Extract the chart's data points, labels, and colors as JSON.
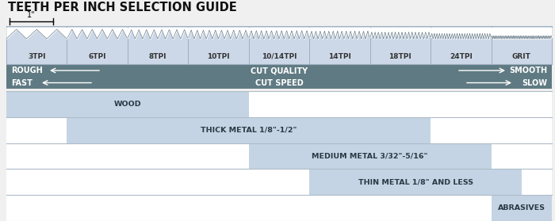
{
  "title": "TEETH PER INCH SELECTION GUIDE",
  "blade_labels": [
    "3TPI",
    "6TPI",
    "8TPI",
    "10TPI",
    "10/14TPI",
    "14TPI",
    "18TPI",
    "24TPI",
    "GRIT"
  ],
  "num_blades": 9,
  "tpi_freqs": [
    3,
    6,
    8,
    10,
    12,
    14,
    18,
    24,
    40
  ],
  "cut_quality_left": "ROUGH",
  "cut_quality_center": "CUT QUALITY",
  "cut_quality_right": "SMOOTH",
  "cut_speed_left": "FAST",
  "cut_speed_center": "CUT SPEED",
  "cut_speed_right": "SLOW",
  "bar_bg_color": "#5f7a82",
  "blade_bg_color": "#ccd8e8",
  "blade_border_color": "#aabbcc",
  "mat_bar_color": "#c4d4e4",
  "bg_color": "#f0f0f0",
  "white": "#ffffff",
  "inch_label": "1\"",
  "mat_defs": [
    [
      0,
      4,
      0,
      "WOOD"
    ],
    [
      1,
      7,
      1,
      "THICK METAL 1/8–-1/2\""
    ],
    [
      4,
      8,
      2,
      "MEDIUM METAL 3/32–-5/16\""
    ],
    [
      5,
      8.5,
      3,
      "THIN METAL 1/8\" AND LESS"
    ],
    [
      8,
      9,
      4,
      "ABRASIVES"
    ]
  ]
}
